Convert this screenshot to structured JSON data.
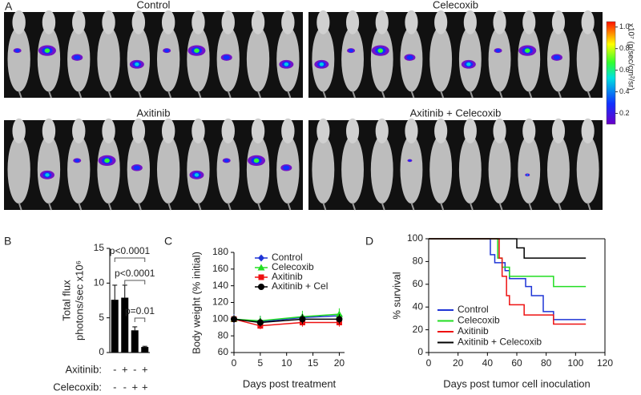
{
  "panel_a": {
    "label": "A",
    "groups": [
      "Control",
      "Celecoxib",
      "Axitinib",
      "Axitinib + Celecoxib"
    ],
    "colorbar": {
      "lim": [
        0.1,
        1.05
      ],
      "ticks": [
        0.2,
        0.4,
        0.6,
        0.8,
        {
          "value": 1.0,
          "label": "1.0"
        }
      ],
      "label": "x10⁷ (p/sec/cm²/sr)"
    }
  },
  "chart_data": [
    {
      "type": "bar",
      "panel": "B",
      "ylabel": [
        "Total flux",
        "photons/sec  x10⁶"
      ],
      "values": [
        7.6,
        7.9,
        3.2,
        0.8
      ],
      "errors": [
        2.1,
        1.8,
        0.5,
        0.1
      ],
      "color": "#000000",
      "ylim": [
        0,
        15
      ],
      "yticks": [
        0,
        5,
        10,
        15
      ],
      "rows": [
        {
          "name": "Axitinib:",
          "signs": [
            "-",
            "+",
            "-",
            "+"
          ]
        },
        {
          "name": "Celecoxib:",
          "signs": [
            "-",
            "-",
            "+",
            "+"
          ]
        }
      ],
      "annotations": [
        "p<0.0001",
        "p<0.0001",
        "p=0.01"
      ]
    },
    {
      "type": "line",
      "panel": "C",
      "xlabel": "Days post treatment",
      "ylabel": "Body weight (% initial)",
      "x": [
        0,
        5,
        13,
        20
      ],
      "xlim": [
        0,
        21
      ],
      "xticks": [
        0,
        5,
        10,
        15,
        20
      ],
      "ylim": [
        60,
        180
      ],
      "yticks": [
        60,
        80,
        100,
        120,
        140,
        160,
        180
      ],
      "series": [
        {
          "name": "Control",
          "color": "#1f35d6",
          "marker": "diamond",
          "values": [
            100,
            97,
            102,
            104
          ],
          "errors": [
            6,
            7,
            5,
            6
          ]
        },
        {
          "name": "Celecoxib",
          "color": "#22dd22",
          "marker": "triangle",
          "values": [
            100,
            98,
            103,
            106
          ],
          "errors": [
            5,
            6,
            7,
            7
          ]
        },
        {
          "name": "Axitinib",
          "color": "#ee1111",
          "marker": "square",
          "values": [
            100,
            92,
            96,
            96
          ],
          "errors": [
            5,
            4,
            5,
            5
          ]
        },
        {
          "name": "Axitinib + Cel",
          "color": "#000000",
          "marker": "circle",
          "values": [
            100,
            96,
            100,
            100
          ],
          "errors": [
            5,
            5,
            6,
            6
          ]
        }
      ]
    },
    {
      "type": "step",
      "panel": "D",
      "xlabel": "Days post tumor cell inoculation",
      "ylabel": "% survival",
      "xlim": [
        0,
        120
      ],
      "xticks": [
        0,
        20,
        40,
        60,
        80,
        100,
        120
      ],
      "ylim": [
        0,
        100
      ],
      "yticks": [
        0,
        20,
        40,
        60,
        80,
        100
      ],
      "series": [
        {
          "name": "Control",
          "color": "#1f35d6",
          "x": [
            0,
            42,
            45,
            52,
            55,
            66,
            70,
            78,
            85,
            107
          ],
          "values": [
            100,
            86,
            79,
            72,
            65,
            58,
            50,
            36,
            29,
            29
          ]
        },
        {
          "name": "Celecoxib",
          "color": "#22dd22",
          "x": [
            0,
            47,
            50,
            55,
            85,
            107
          ],
          "values": [
            100,
            83,
            75,
            67,
            58,
            58
          ]
        },
        {
          "name": "Axitinib",
          "color": "#ee1111",
          "x": [
            0,
            48,
            50,
            53,
            55,
            65,
            85,
            107
          ],
          "values": [
            100,
            83,
            67,
            50,
            42,
            33,
            25,
            25
          ]
        },
        {
          "name": "Axitinib + Celecoxib",
          "color": "#000000",
          "x": [
            0,
            60,
            65,
            107
          ],
          "values": [
            100,
            92,
            83,
            83
          ]
        }
      ]
    }
  ]
}
